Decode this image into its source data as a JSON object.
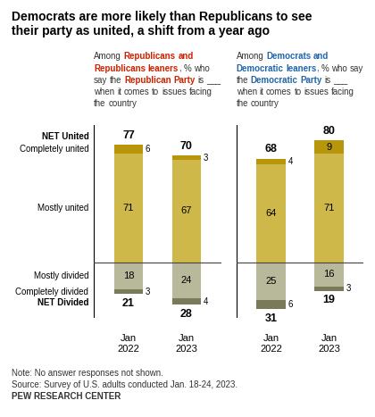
{
  "chart_data": {
    "type": "bar",
    "stacked": true,
    "data_labels": true,
    "tick_labels": "x",
    "title": "Democrats are more likely than Republicans to see\ntheir party as united, a shift from a year ago",
    "groups": [
      {
        "subtitle": [
          {
            "text": "Among "
          },
          {
            "text": "Republicans and Republicans leaners",
            "color": "#CC2200"
          },
          {
            "text": ", % who say the "
          },
          {
            "text": "Republican Party",
            "color": "#CC2200"
          },
          {
            "text": " is ___ when it comes to issues facing the country"
          }
        ],
        "categories": [
          "Jan\n2022",
          "Jan\n2023"
        ]
      },
      {
        "subtitle": [
          {
            "text": "Among "
          },
          {
            "text": "Democrats and Democratic leaners",
            "color": "#2266AA"
          },
          {
            "text": ", % who say the "
          },
          {
            "text": "Democratic Party",
            "color": "#2266AA"
          },
          {
            "text": " is ___ when it comes to issues facing the country"
          }
        ],
        "categories": [
          "Jan\n2022",
          "Jan\n2023"
        ]
      }
    ],
    "series": [
      {
        "name": "Completely united",
        "color": "#B8960C",
        "direction": "up",
        "values": [
          [
            6,
            3
          ],
          [
            4,
            9
          ]
        ]
      },
      {
        "name": "Mostly united",
        "color": "#CEB84A",
        "direction": "up",
        "values": [
          [
            71,
            67
          ],
          [
            64,
            71
          ]
        ]
      },
      {
        "name": "Mostly divided",
        "color": "#B8B89A",
        "direction": "down",
        "values": [
          [
            18,
            24
          ],
          [
            25,
            16
          ]
        ]
      },
      {
        "name": "Completely divided",
        "color": "#7A7A5A",
        "direction": "down",
        "values": [
          [
            3,
            4
          ],
          [
            6,
            3
          ]
        ]
      }
    ],
    "totals": [
      {
        "name": "NET United",
        "direction": "up",
        "values": [
          [
            77,
            70
          ],
          [
            68,
            80
          ]
        ]
      },
      {
        "name": "NET Divided",
        "direction": "down",
        "values": [
          [
            21,
            28
          ],
          [
            31,
            19
          ]
        ]
      }
    ],
    "ylim": [
      -36,
      90
    ],
    "yticks": [],
    "annotations": [
      "Note: No answer responses not shown.",
      "Source: Survey of U.S. adults conducted Jan. 18-24, 2023.",
      "PEW RESEARCH CENTER"
    ]
  }
}
